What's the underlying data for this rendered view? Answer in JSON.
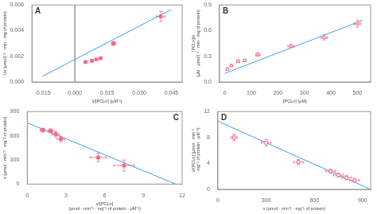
{
  "chart_data": [
    {
      "type": "scatter",
      "annotations": [
        "A"
      ],
      "xlabel": "1/[PCLn] (μM⁻¹)",
      "ylabel": "1/v (μmol)⁻¹ · min · mg of protein)",
      "xlim": [
        -0.02,
        0.05
      ],
      "ylim": [
        0.0,
        0.006
      ],
      "xticks": [
        -0.015,
        {
          "value": 0.0,
          "label": "0.000"
        },
        0.015,
        {
          "value": 0.03,
          "label": "0.030"
        },
        0.045
      ],
      "yticks": [
        {
          "value": 0.0,
          "label": "0.000"
        },
        0.002,
        0.004,
        0.006
      ],
      "grid": false,
      "vline": 0.0,
      "series": [
        {
          "type": "line",
          "line_style": "solid",
          "x": [
            -0.015,
            0.045
          ],
          "values": [
            0.00045,
            0.00565
          ]
        },
        {
          "type": "scatter",
          "marker": "filled square",
          "x": [
            0.005,
            0.008,
            0.01,
            0.012,
            0.018,
            0.04
          ],
          "values": [
            0.00155,
            0.00165,
            0.00175,
            0.00185,
            0.003,
            0.0051
          ],
          "xerr": [
            0.0005,
            0.0005,
            0.0005,
            0.0005,
            0.001,
            0.002
          ],
          "yerr": [
            8e-05,
            8e-05,
            8e-05,
            8e-05,
            0.00015,
            0.0004
          ]
        }
      ]
    },
    {
      "type": "scatter",
      "annotations": [
        "B"
      ],
      "xlabel": "[PCLn] (μM)",
      "ylabel": "[PCLn]/v\n(μM · μmol)⁻¹ · min · mg of protein)",
      "xlim": [
        -20,
        550
      ],
      "ylim": [
        0.0,
        0.9
      ],
      "xticks": [
        0,
        100,
        200,
        300,
        400,
        500
      ],
      "yticks": [
        {
          "value": 0.0,
          "label": "0.0"
        },
        0.3,
        0.6,
        0.9
      ],
      "grid": false,
      "series": [
        {
          "type": "line",
          "line_style": "solid",
          "x": [
            0,
            520
          ],
          "values": [
            0.1,
            0.72
          ]
        },
        {
          "type": "scatter",
          "marker": "open triangle",
          "x": [
            10,
            25,
            50,
            75,
            125,
            250,
            375,
            500
          ],
          "values": [
            0.15,
            0.19,
            0.24,
            0.25,
            0.32,
            0.42,
            0.52,
            0.68
          ],
          "xerr": [
            3,
            3,
            5,
            5,
            8,
            12,
            12,
            12
          ],
          "yerr": [
            0.01,
            0.01,
            0.01,
            0.01,
            0.02,
            0.02,
            0.03,
            0.04
          ]
        }
      ]
    },
    {
      "type": "scatter",
      "annotations": [
        "C"
      ],
      "xlabel": "v/[PCLn]\n(μmol · min⁻¹ · mg⁻¹ of protein · μM⁻¹)",
      "ylabel": "v (μmol · min⁻¹ · mg⁻¹ of protein)",
      "xlim": [
        0,
        12
      ],
      "ylim": [
        0,
        900
      ],
      "xticks": [
        0,
        3,
        6,
        9,
        12
      ],
      "yticks": [
        0,
        300,
        600,
        900
      ],
      "grid": false,
      "series": [
        {
          "type": "line",
          "line_style": "solid",
          "x": [
            0,
            11.5
          ],
          "values": [
            760,
            0
          ]
        },
        {
          "type": "scatter",
          "marker": "filled square",
          "x": [
            1.2,
            1.8,
            2.2,
            2.6,
            5.5,
            7.5
          ],
          "values": [
            670,
            660,
            620,
            560,
            330,
            230
          ],
          "xerr": [
            0.2,
            0.2,
            0.3,
            0.3,
            0.6,
            0.8
          ],
          "yerr": [
            25,
            25,
            35,
            35,
            50,
            70
          ]
        }
      ]
    },
    {
      "type": "scatter",
      "annotations": [
        "D"
      ],
      "xlabel": "v (μmol · min⁻¹ · mg⁻¹ of protein)",
      "ylabel": "v/[PCLn] (μmol · min⁻¹\n· mg⁻¹ of protein · μM⁻¹)",
      "xlim": [
        0,
        950
      ],
      "ylim": [
        0,
        12
      ],
      "xticks": [
        0,
        300,
        600,
        900
      ],
      "yticks": [
        0,
        4,
        8,
        12
      ],
      "grid": false,
      "series": [
        {
          "type": "line",
          "line_style": "solid",
          "x": [
            0,
            950
          ],
          "values": [
            10.5,
            0.0
          ]
        },
        {
          "type": "scatter",
          "marker": "open square",
          "x": [
            100,
            300,
            500,
            700,
            750,
            800,
            850
          ],
          "values": [
            8.0,
            7.2,
            4.2,
            2.8,
            2.2,
            1.8,
            1.4
          ],
          "xerr": [
            20,
            30,
            30,
            30,
            30,
            30,
            30
          ],
          "yerr": [
            0.5,
            0.5,
            0.4,
            0.3,
            0.3,
            0.3,
            0.3
          ]
        }
      ]
    }
  ]
}
